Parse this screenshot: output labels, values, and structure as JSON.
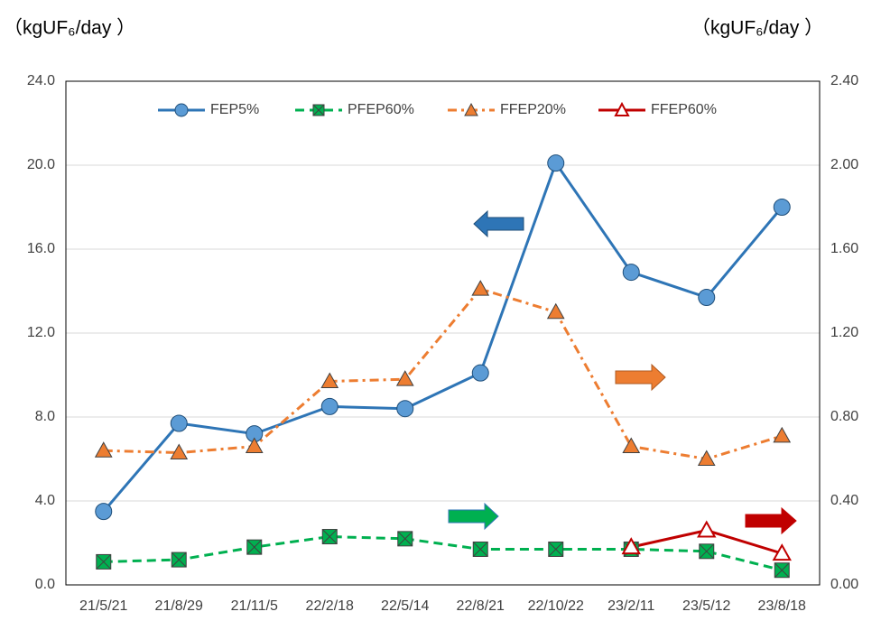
{
  "chart_data": {
    "type": "line",
    "y_label": "（kgUF₆/day ）",
    "y2_label": "（kgUF₆/day ）",
    "categories": [
      "21/5/21",
      "21/8/29",
      "21/11/5",
      "22/2/18",
      "22/5/14",
      "22/8/21",
      "22/10/22",
      "23/2/11",
      "23/5/12",
      "23/8/18"
    ],
    "ylim": [
      0,
      24
    ],
    "yticks": [
      {
        "value": 0,
        "label": "0.0"
      },
      {
        "value": 4,
        "label": "4.0"
      },
      {
        "value": 8,
        "label": "8.0"
      },
      {
        "value": 12,
        "label": "12.0"
      },
      {
        "value": 16,
        "label": "16.0"
      },
      {
        "value": 20,
        "label": "20.0"
      },
      {
        "value": 24,
        "label": "24.0"
      }
    ],
    "y2lim": [
      0,
      2.4
    ],
    "y2ticks": [
      {
        "value": 0,
        "label": "0.00"
      },
      {
        "value": 0.4,
        "label": "0.40"
      },
      {
        "value": 0.8,
        "label": "0.80"
      },
      {
        "value": 1.2,
        "label": "1.20"
      },
      {
        "value": 1.6,
        "label": "1.60"
      },
      {
        "value": 2,
        "label": "2.00"
      },
      {
        "value": 2.4,
        "label": "2.40"
      }
    ],
    "grid": true,
    "legend": "top",
    "series": [
      {
        "name": "FEP5%",
        "color": "#2e75b6",
        "marker": "circle",
        "marker_fill": "#5b9bd5",
        "dash": "solid",
        "axis": "y",
        "values": [
          3.5,
          7.7,
          7.2,
          8.5,
          8.4,
          10.1,
          20.1,
          14.9,
          13.7,
          18.0
        ]
      },
      {
        "name": "PFEP60%",
        "color": "#00b050",
        "marker": "square-x",
        "marker_fill": "#00b050",
        "dash": "dash",
        "axis": "y2",
        "values": [
          0.11,
          0.12,
          0.18,
          0.23,
          0.22,
          0.17,
          0.17,
          0.17,
          0.16,
          0.07
        ]
      },
      {
        "name": "FFEP20%",
        "color": "#ed7d31",
        "marker": "triangle",
        "marker_fill": "#ed7d31",
        "dash": "dashdot",
        "axis": "y2",
        "values": [
          0.64,
          0.63,
          0.66,
          0.97,
          0.98,
          1.41,
          1.3,
          0.66,
          0.6,
          0.71
        ]
      },
      {
        "name": "FFEP60%",
        "color": "#c00000",
        "marker": "triangle",
        "marker_fill": "#ffffff",
        "dash": "solid",
        "axis": "y2",
        "values": [
          null,
          null,
          null,
          null,
          null,
          null,
          null,
          0.18,
          0.26,
          0.15
        ]
      }
    ]
  }
}
